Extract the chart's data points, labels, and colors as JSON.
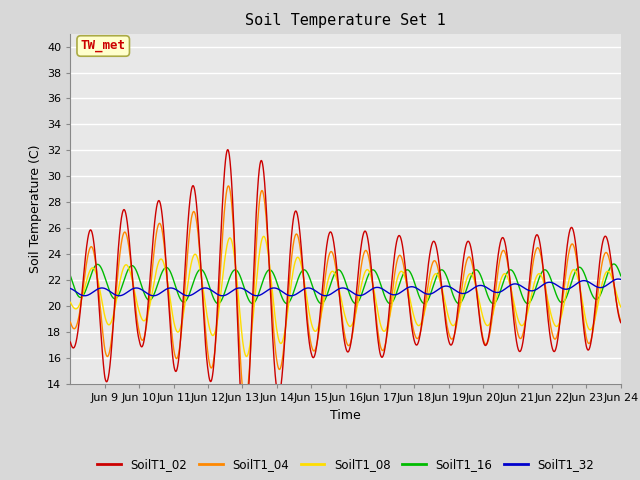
{
  "title": "Soil Temperature Set 1",
  "xlabel": "Time",
  "ylabel": "Soil Temperature (C)",
  "ylim": [
    14,
    41
  ],
  "yticks": [
    14,
    16,
    18,
    20,
    22,
    24,
    26,
    28,
    30,
    32,
    34,
    36,
    38,
    40
  ],
  "xlim_days": [
    8.0,
    24.0
  ],
  "xtick_labels": [
    "Jun 9",
    "Jun 10",
    "Jun 11",
    "Jun 12",
    "Jun 13",
    "Jun 14",
    "Jun 15",
    "Jun 16",
    "Jun 17",
    "Jun 18",
    "Jun 19",
    "Jun 20",
    "Jun 21",
    "Jun 22",
    "Jun 23",
    "Jun 24"
  ],
  "xtick_positions": [
    9,
    10,
    11,
    12,
    13,
    14,
    15,
    16,
    17,
    18,
    19,
    20,
    21,
    22,
    23,
    24
  ],
  "series": {
    "SoilT1_02": {
      "color": "#cc0000",
      "lw": 1.0
    },
    "SoilT1_04": {
      "color": "#ff8800",
      "lw": 1.0
    },
    "SoilT1_08": {
      "color": "#ffdd00",
      "lw": 1.0
    },
    "SoilT1_16": {
      "color": "#00bb00",
      "lw": 1.0
    },
    "SoilT1_32": {
      "color": "#0000cc",
      "lw": 1.0
    }
  },
  "annotation_text": "TW_met",
  "annotation_color": "#cc0000",
  "annotation_bg": "#ffffcc",
  "annotation_border": "#aaaa44",
  "fig_bg": "#d8d8d8",
  "plot_bg": "#e8e8e8",
  "grid_color": "#ffffff",
  "legend_labels": [
    "SoilT1_02",
    "SoilT1_04",
    "SoilT1_08",
    "SoilT1_16",
    "SoilT1_32"
  ]
}
